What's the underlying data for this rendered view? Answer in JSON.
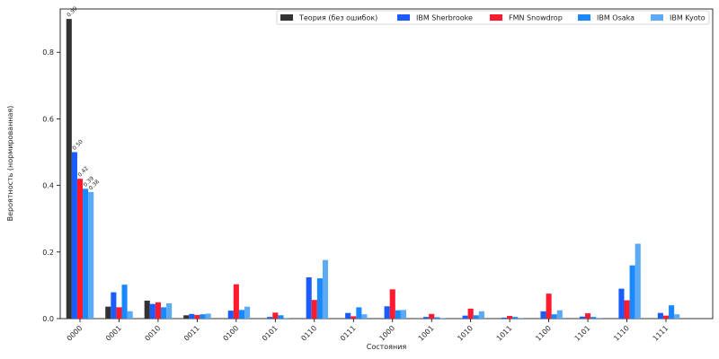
{
  "chart_data": {
    "type": "bar",
    "title": "",
    "xlabel": "Состояния",
    "ylabel": "Вероятность (нормированная)",
    "ylim": [
      0,
      0.93
    ],
    "yticks": [
      0.0,
      0.2,
      0.4,
      0.6,
      0.8
    ],
    "ytick_labels": [
      "0.0",
      "0.2",
      "0.4",
      "0.6",
      "0.8"
    ],
    "grid": false,
    "legend_position": "top-right",
    "categories": [
      "0000",
      "0001",
      "0010",
      "0011",
      "0100",
      "0101",
      "0110",
      "0111",
      "1000",
      "1001",
      "1010",
      "1011",
      "1100",
      "1101",
      "1110",
      "1111"
    ],
    "series": [
      {
        "name": "Теория (без ошибок)",
        "color": "#333333",
        "values": [
          0.9,
          0.036,
          0.054,
          0.01,
          0.0,
          0.0,
          0.0,
          0.0,
          0.0,
          0.0,
          0.0,
          0.0,
          0.0,
          0.0,
          0.0,
          0.0
        ]
      },
      {
        "name": "IBM Sherbrooke",
        "color": "#1a5cff",
        "values": [
          0.5,
          0.079,
          0.044,
          0.014,
          0.024,
          0.005,
          0.124,
          0.017,
          0.037,
          0.005,
          0.009,
          0.003,
          0.022,
          0.006,
          0.09,
          0.017
        ]
      },
      {
        "name": "FMN Snowdrop",
        "color": "#ff1a2e",
        "values": [
          0.42,
          0.034,
          0.049,
          0.011,
          0.103,
          0.018,
          0.056,
          0.007,
          0.088,
          0.014,
          0.03,
          0.008,
          0.075,
          0.016,
          0.055,
          0.009
        ]
      },
      {
        "name": "IBM Osaka",
        "color": "#1a88ff",
        "values": [
          0.39,
          0.102,
          0.034,
          0.013,
          0.026,
          0.01,
          0.121,
          0.034,
          0.025,
          0.004,
          0.01,
          0.005,
          0.013,
          0.005,
          0.16,
          0.04
        ]
      },
      {
        "name": "IBM Kyoto",
        "color": "#5aaaf5",
        "values": [
          0.38,
          0.022,
          0.046,
          0.015,
          0.036,
          0.002,
          0.176,
          0.013,
          0.026,
          0.002,
          0.022,
          0.002,
          0.025,
          0.002,
          0.225,
          0.013
        ]
      }
    ],
    "annotations": [
      {
        "series": 0,
        "category": 0,
        "text": "0.90"
      },
      {
        "series": 1,
        "category": 0,
        "text": "0.50"
      },
      {
        "series": 2,
        "category": 0,
        "text": "0.42"
      },
      {
        "series": 3,
        "category": 0,
        "text": "0.39"
      },
      {
        "series": 4,
        "category": 0,
        "text": "0.38"
      }
    ]
  }
}
